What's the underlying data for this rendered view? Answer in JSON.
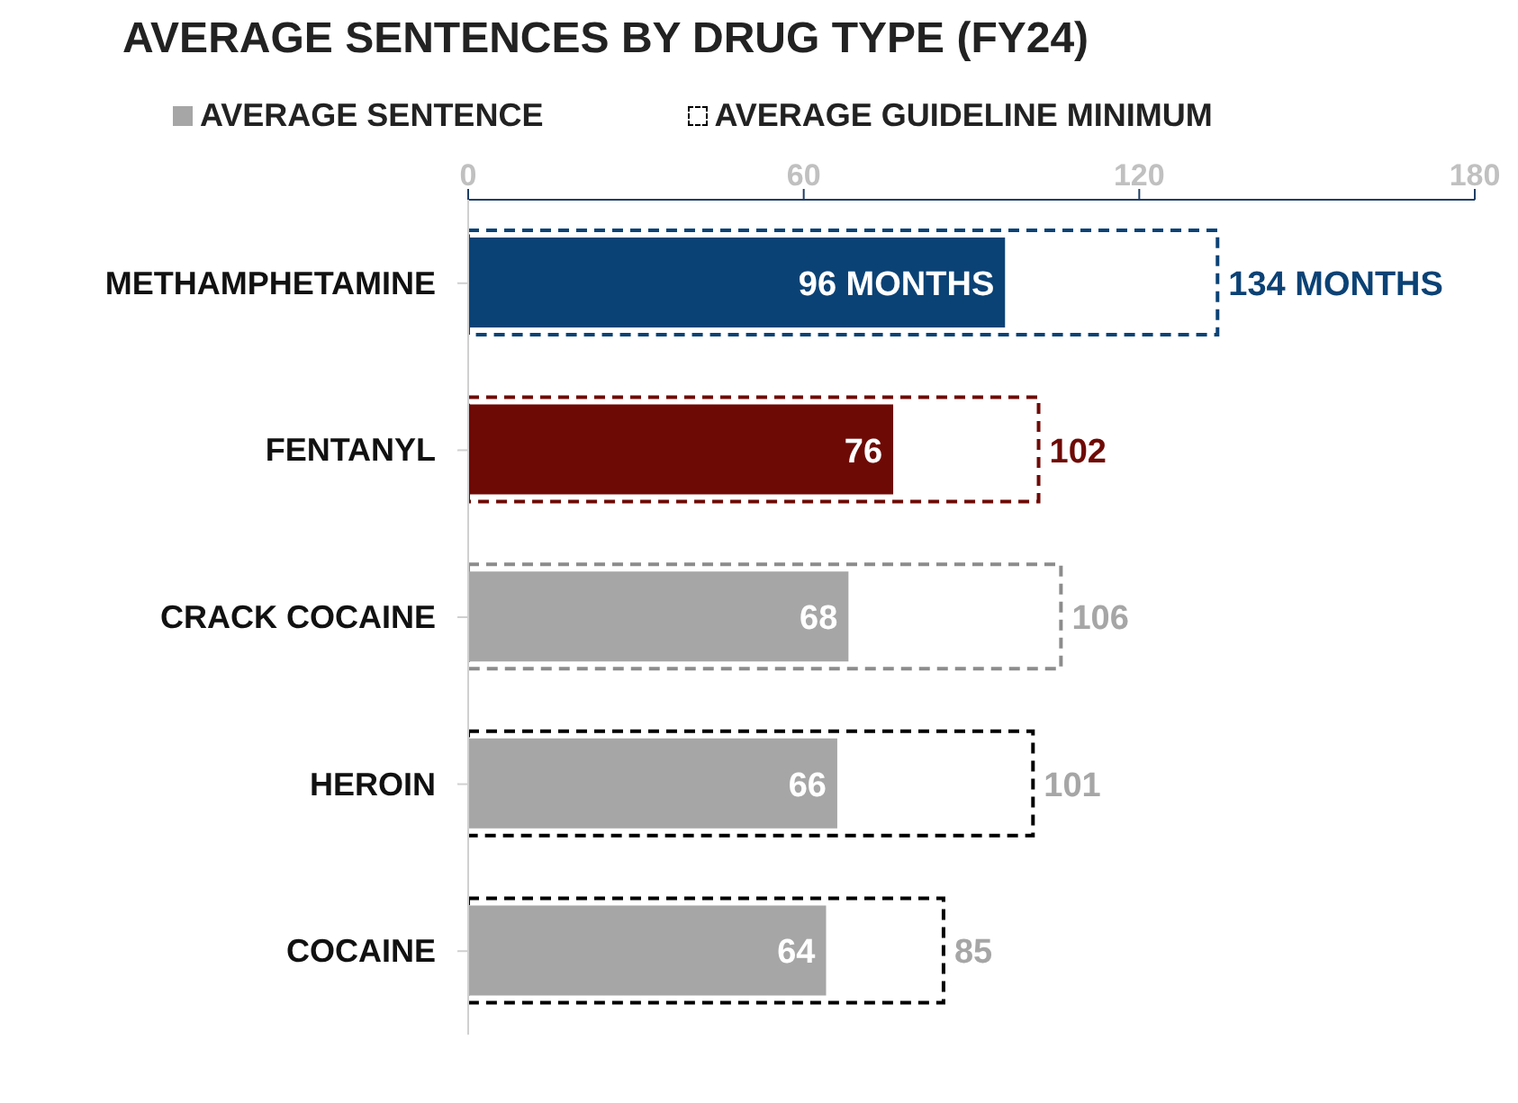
{
  "chart_data": {
    "type": "bar",
    "orientation": "horizontal",
    "title": "AVERAGE SENTENCES BY DRUG TYPE (FY24)",
    "categories": [
      "METHAMPHETAMINE",
      "FENTANYL",
      "CRACK COCAINE",
      "HEROIN",
      "COCAINE"
    ],
    "xlim": [
      0,
      180
    ],
    "xticks": [
      0,
      60,
      120,
      180
    ],
    "legend": "top",
    "series": [
      {
        "name": "AVERAGE SENTENCE",
        "color": "#a6a6a6",
        "colors": [
          "#0b4275",
          "#6e0a06",
          "#a6a6a6",
          "#a6a6a6",
          "#a6a6a6"
        ],
        "values": [
          96,
          76,
          68,
          66,
          64
        ],
        "value_labels": [
          "96 MONTHS",
          "76",
          "68",
          "66",
          "64"
        ]
      },
      {
        "name": "AVERAGE GUIDELINE MINIMUM",
        "line_style": "dashed",
        "color": "#000000",
        "colors": [
          "#0b4275",
          "#6e0a06",
          "#8c8c8c",
          "#000000",
          "#000000"
        ],
        "values": [
          134,
          102,
          106,
          101,
          85
        ],
        "value_labels": [
          "134 MONTHS",
          "102",
          "106",
          "101",
          "85"
        ]
      }
    ]
  }
}
